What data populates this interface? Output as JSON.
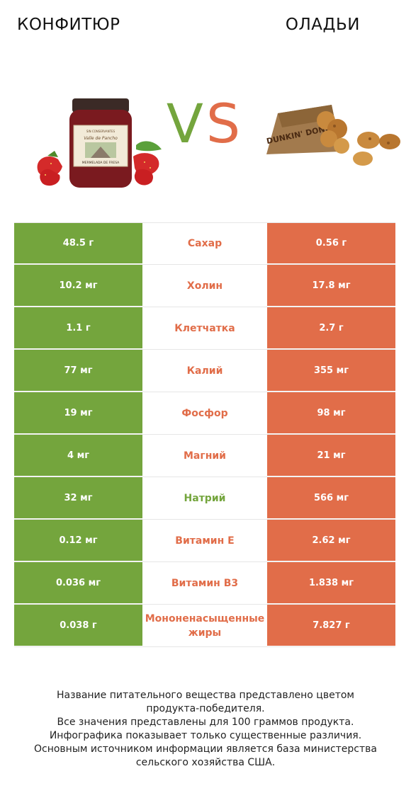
{
  "header": {
    "left_title": "КОНФИТЮР",
    "right_title": "ОЛАДЬИ",
    "vs_v": "V",
    "vs_s": "S"
  },
  "colors": {
    "left_product": "#74a53d",
    "right_product": "#e16d49"
  },
  "images": {
    "left": "jam-jar-with-strawberries",
    "right": "donut-holes-in-paper-bag"
  },
  "jar_label": {
    "line1": "SIN CONSERVANTES",
    "line2": "Valle de Pancho",
    "line3": "MERMELADA DE FRESA"
  },
  "bag_label": "DUNKIN' DONUTS",
  "rows": [
    {
      "left": "48.5 г",
      "nutrient": "Сахар",
      "right": "0.56 г",
      "winner": "right"
    },
    {
      "left": "10.2 мг",
      "nutrient": "Холин",
      "right": "17.8 мг",
      "winner": "right"
    },
    {
      "left": "1.1 г",
      "nutrient": "Клетчатка",
      "right": "2.7 г",
      "winner": "right"
    },
    {
      "left": "77 мг",
      "nutrient": "Калий",
      "right": "355 мг",
      "winner": "right"
    },
    {
      "left": "19 мг",
      "nutrient": "Фосфор",
      "right": "98 мг",
      "winner": "right"
    },
    {
      "left": "4 мг",
      "nutrient": "Магний",
      "right": "21 мг",
      "winner": "right"
    },
    {
      "left": "32 мг",
      "nutrient": "Натрий",
      "right": "566 мг",
      "winner": "left"
    },
    {
      "left": "0.12 мг",
      "nutrient": "Витамин E",
      "right": "2.62 мг",
      "winner": "right"
    },
    {
      "left": "0.036 мг",
      "nutrient": "Витамин B3",
      "right": "1.838 мг",
      "winner": "right"
    },
    {
      "left": "0.038 г",
      "nutrient": "Мононенасыщенные жиры",
      "right": "7.827 г",
      "winner": "right"
    }
  ],
  "footer": {
    "line1": "Название питательного вещества представлено цветом",
    "line2": "продукта-победителя.",
    "line3": "Все значения представлены для 100 граммов продукта.",
    "line4": "Инфографика показывает только существенные различия.",
    "line5": "Основным источником информации является база министерства",
    "line6": "сельского хозяйства США."
  }
}
